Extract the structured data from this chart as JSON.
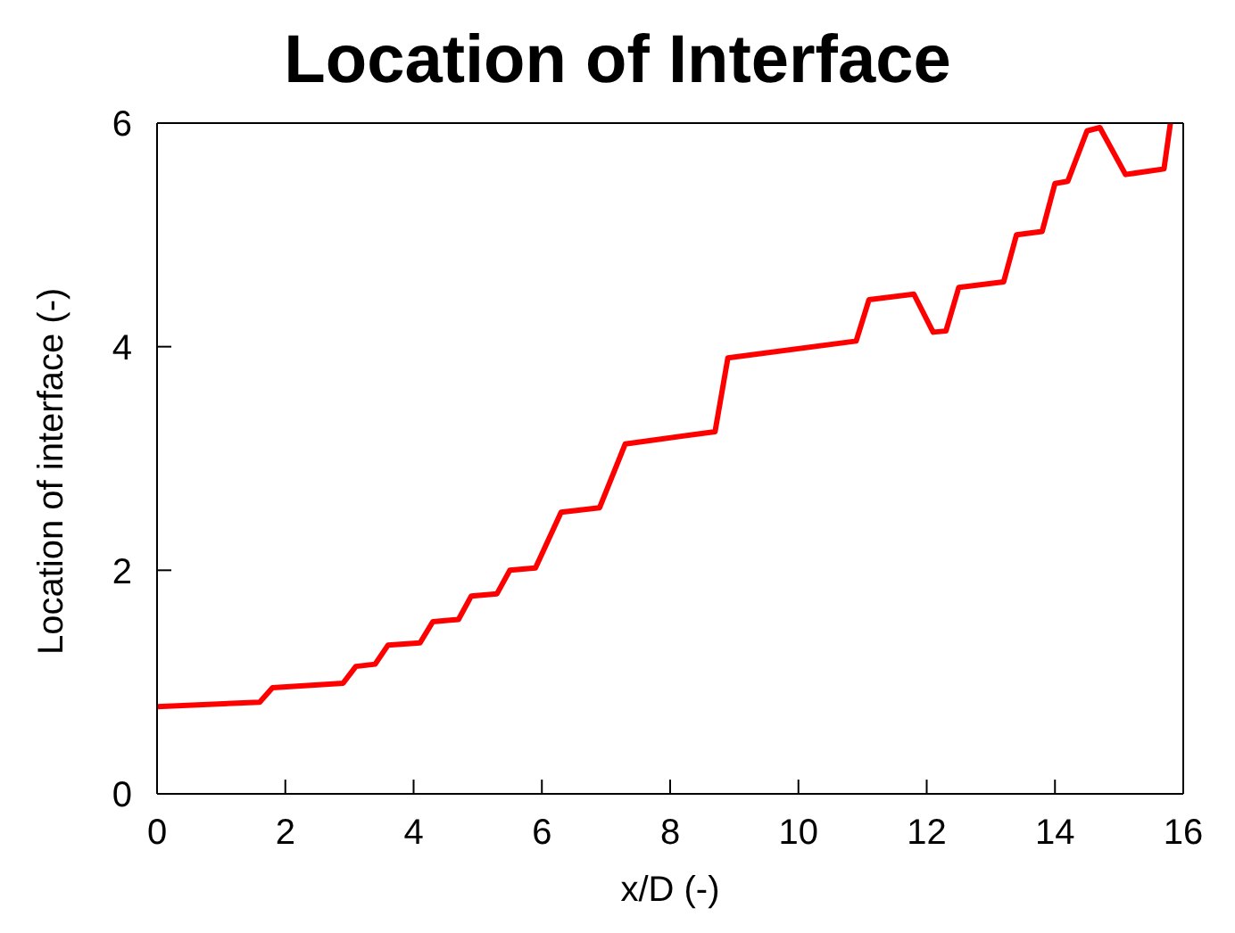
{
  "chart_data": {
    "type": "line",
    "title": "Location of Interface",
    "xlabel": "x/D (-)",
    "ylabel": "Location of interface  (-)",
    "x": [
      0,
      1.6,
      1.8,
      2.9,
      3.1,
      3.4,
      3.6,
      4.1,
      4.3,
      4.7,
      4.9,
      5.3,
      5.5,
      5.9,
      6.3,
      6.9,
      7.3,
      8.7,
      8.9,
      10.9,
      11.1,
      11.8,
      12.1,
      12.3,
      12.5,
      13.2,
      13.4,
      13.8,
      14.0,
      14.2,
      14.5,
      14.7,
      15.1,
      15.7,
      15.8
    ],
    "series": [
      {
        "color": "#ff0000",
        "values": [
          0.78,
          0.82,
          0.95,
          0.99,
          1.14,
          1.16,
          1.33,
          1.35,
          1.54,
          1.56,
          1.77,
          1.79,
          2.0,
          2.02,
          2.52,
          2.56,
          3.13,
          3.24,
          3.9,
          4.05,
          4.42,
          4.47,
          4.13,
          4.14,
          4.53,
          4.58,
          5.0,
          5.03,
          5.46,
          5.48,
          5.93,
          5.96,
          5.54,
          5.59,
          6.0
        ]
      }
    ],
    "xlim": [
      0,
      16
    ],
    "xticks": [
      0,
      2,
      4,
      6,
      8,
      10,
      12,
      14,
      16
    ],
    "ylim": [
      0,
      6
    ],
    "yticks": [
      0,
      2,
      4,
      6
    ],
    "grid": false,
    "legend": false,
    "marker": "none",
    "line_style": "solid"
  }
}
